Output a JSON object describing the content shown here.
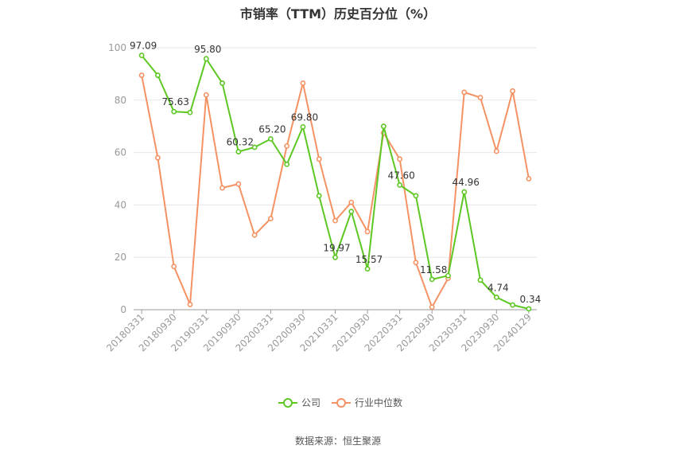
{
  "title": "市销率（TTM）历史百分位（%）",
  "source": "数据来源：恒生聚源",
  "colors": {
    "company": "#5dc723",
    "industry": "#f59263",
    "grid": "#e6e6e6",
    "axis": "#999999"
  },
  "chart_data": {
    "type": "line",
    "title": "市销率（TTM）历史百分位（%）",
    "ylim": [
      0,
      100
    ],
    "yticks": [
      0,
      20,
      40,
      60,
      80,
      100
    ],
    "x": [
      "20180331",
      "20180630",
      "20180930",
      "20181231",
      "20190331",
      "20190630",
      "20190930",
      "20191231",
      "20200331",
      "20200630",
      "20200930",
      "20201231",
      "20210331",
      "20210630",
      "20210930",
      "20211231",
      "20220331",
      "20220630",
      "20220930",
      "20221231",
      "20230331",
      "20230630",
      "20230930",
      "20231231",
      "20240129"
    ],
    "xtick_labels": [
      "20180331",
      "20180930",
      "20190331",
      "20190930",
      "20200331",
      "20200930",
      "20210331",
      "20210930",
      "20220331",
      "20220930",
      "20230331",
      "20230930",
      "20240129"
    ],
    "grid": true,
    "legend": "bottom-center",
    "series": [
      {
        "name": "公司",
        "values": [
          97.09,
          89.5,
          75.63,
          75.3,
          95.8,
          86.5,
          60.32,
          62.0,
          65.2,
          55.5,
          69.8,
          43.5,
          19.97,
          37.5,
          15.57,
          70.0,
          47.6,
          43.5,
          11.58,
          13.0,
          44.96,
          11.3,
          4.74,
          1.8,
          0.34
        ],
        "labels": [
          "97.09",
          "",
          "75.63",
          "",
          "95.80",
          "",
          "60.32",
          "",
          "65.20",
          "",
          "69.80",
          "",
          "19.97",
          "",
          "15.57",
          "",
          "47.60",
          "",
          "11.58",
          "",
          "44.96",
          "",
          "4.74",
          "",
          "0.34"
        ]
      },
      {
        "name": "行业中位数",
        "values": [
          89.5,
          58.0,
          16.5,
          2.0,
          82.0,
          46.5,
          48.0,
          28.5,
          34.8,
          62.5,
          86.5,
          57.5,
          34.0,
          41.0,
          29.8,
          67.5,
          57.5,
          18.0,
          1.0,
          12.0,
          83.0,
          81.0,
          60.5,
          83.5,
          50.0
        ],
        "labels": []
      }
    ]
  }
}
